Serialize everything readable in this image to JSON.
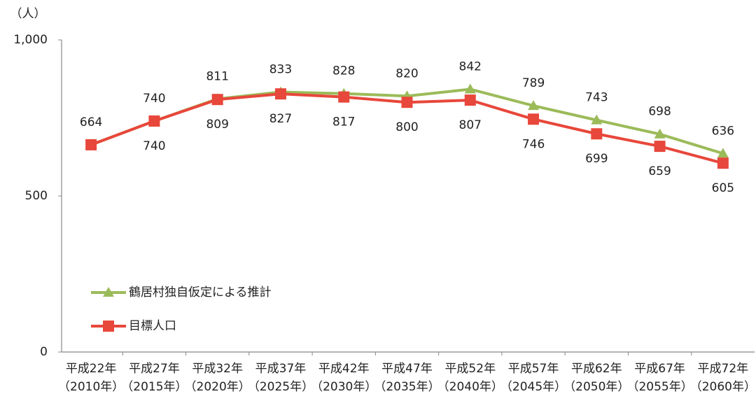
{
  "chart_data": {
    "type": "line",
    "y_label": "（人）",
    "categories": [
      "平成22年\n（2010年）",
      "平成27年\n（2015年）",
      "平成32年\n（2020年）",
      "平成37年\n（2025年）",
      "平成42年\n（2030年）",
      "平成47年\n（2035年）",
      "平成52年\n（2040年）",
      "平成57年\n（2045年）",
      "平成62年\n（2050年）",
      "平成67年\n（2055年）",
      "平成72年\n（2060年）"
    ],
    "series": [
      {
        "name": "鶴居村独自仮定による推計",
        "color": "#9bbb59",
        "marker": "triangle",
        "values": [
          664,
          740,
          811,
          833,
          828,
          820,
          842,
          789,
          743,
          698,
          636
        ]
      },
      {
        "name": "目標人口",
        "color": "#e8473b",
        "marker": "square",
        "values": [
          664,
          740,
          809,
          827,
          817,
          800,
          807,
          746,
          699,
          659,
          605
        ]
      }
    ],
    "ylim": [
      0,
      1000
    ],
    "yticks": [
      0,
      500,
      {
        "value": 1000,
        "label": "1,000"
      }
    ],
    "grid": false,
    "legend": "lower left"
  }
}
